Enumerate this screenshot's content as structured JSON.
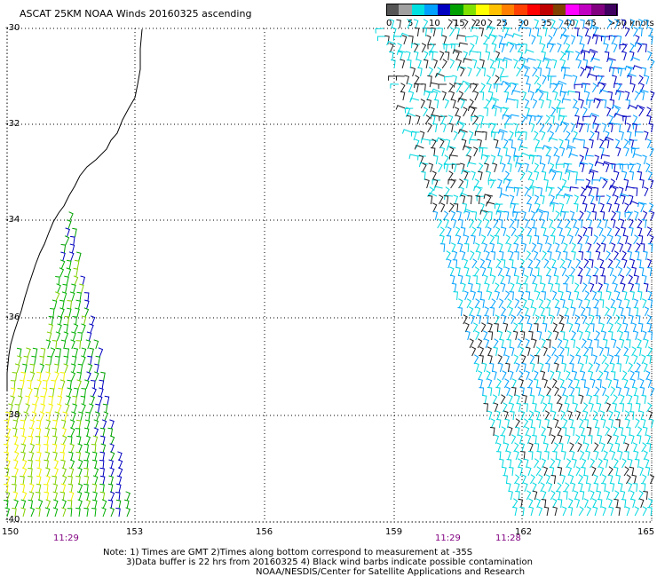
{
  "title": "ASCAT 25KM NOAA Winds 20160325 ascending",
  "legend": {
    "colors": [
      "#555555",
      "#a0a0a0",
      "#00e0e0",
      "#00a0ff",
      "#0000c0",
      "#00a000",
      "#80e000",
      "#ffff00",
      "#ffc000",
      "#ff8000",
      "#ff4000",
      "#ff0000",
      "#c00000",
      "#804000",
      "#ff00ff",
      "#c000c0",
      "#800080",
      "#400060"
    ],
    "labels": [
      "0",
      "5",
      "10",
      "15",
      "20",
      "25",
      "30",
      "35",
      "40",
      "45",
      ">50 knots"
    ]
  },
  "lat_labels": [
    "-30",
    "-32",
    "-34",
    "-36",
    "-38",
    "-40"
  ],
  "lon_labels": [
    "150",
    "153",
    "156",
    "159",
    "162",
    "165"
  ],
  "time_labels": [
    "11:29",
    "11:29",
    "11:28"
  ],
  "notes": {
    "line1": "Note: 1) Times are GMT 2)Times along bottom correspond to measurement at -35S",
    "line2": "3)Data buffer is 22 hrs from 20160325 4) Black wind barbs indicate possible contamination",
    "line3": "NOAA/NESDIS/Center for Satellite Applications and Research"
  },
  "colors": {
    "grid": "#000000",
    "coast": "#000000",
    "time_label": "#800080"
  }
}
